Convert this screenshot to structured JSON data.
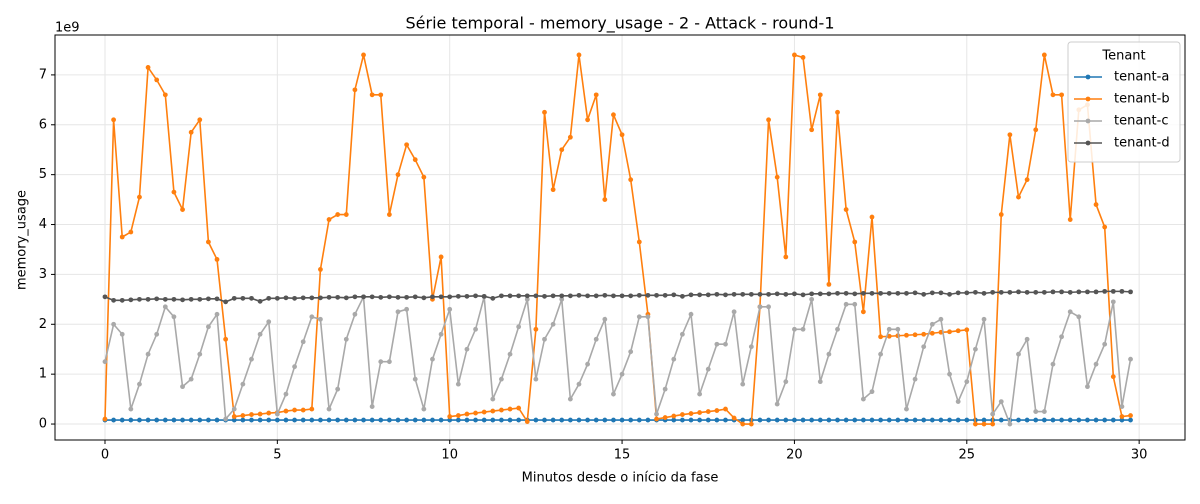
{
  "chart_data": {
    "type": "line",
    "title": "Série temporal - memory_usage - 2 - Attack - round-1",
    "xlabel": "Minutos desde o início da fase",
    "ylabel": "memory_usage",
    "y_offset_label": "1e9",
    "legend_title": "Tenant",
    "legend_loc": "upper right",
    "grid": true,
    "xlim": [
      -1.45,
      31.33
    ],
    "ylim": [
      -0.32,
      7.8
    ],
    "xticks": [
      0,
      5,
      10,
      15,
      20,
      25,
      30
    ],
    "yticks": [
      0,
      1,
      2,
      3,
      4,
      5,
      6,
      7
    ],
    "x": [
      0,
      0.25,
      0.5,
      0.75,
      1,
      1.25,
      1.5,
      1.75,
      2,
      2.25,
      2.5,
      2.75,
      3,
      3.25,
      3.5,
      3.75,
      4,
      4.25,
      4.5,
      4.75,
      5,
      5.25,
      5.5,
      5.75,
      6,
      6.25,
      6.5,
      6.75,
      7,
      7.25,
      7.5,
      7.75,
      8,
      8.25,
      8.5,
      8.75,
      9,
      9.25,
      9.5,
      9.75,
      10,
      10.25,
      10.5,
      10.75,
      11,
      11.25,
      11.5,
      11.75,
      12,
      12.25,
      12.5,
      12.75,
      13,
      13.25,
      13.5,
      13.75,
      14,
      14.25,
      14.5,
      14.75,
      15,
      15.25,
      15.5,
      15.75,
      16,
      16.25,
      16.5,
      16.75,
      17,
      17.25,
      17.5,
      17.75,
      18,
      18.25,
      18.5,
      18.75,
      19,
      19.25,
      19.5,
      19.75,
      20,
      20.25,
      20.5,
      20.75,
      21,
      21.25,
      21.5,
      21.75,
      22,
      22.25,
      22.5,
      22.75,
      23,
      23.25,
      23.5,
      23.75,
      24,
      24.25,
      24.5,
      24.75,
      25,
      25.25,
      25.5,
      25.75,
      26,
      26.25,
      26.5,
      26.75,
      27,
      27.25,
      27.5,
      27.75,
      28,
      28.25,
      28.5,
      28.75,
      29,
      29.25,
      29.5,
      29.75
    ],
    "series": [
      {
        "name": "tenant-a",
        "color": "#1f77b4",
        "values": [
          0.08,
          0.08,
          0.08,
          0.08,
          0.08,
          0.08,
          0.08,
          0.08,
          0.08,
          0.08,
          0.08,
          0.08,
          0.08,
          0.08,
          0.08,
          0.08,
          0.08,
          0.08,
          0.08,
          0.08,
          0.08,
          0.08,
          0.08,
          0.08,
          0.08,
          0.08,
          0.08,
          0.08,
          0.08,
          0.08,
          0.08,
          0.08,
          0.08,
          0.08,
          0.08,
          0.08,
          0.08,
          0.08,
          0.08,
          0.08,
          0.08,
          0.08,
          0.08,
          0.08,
          0.08,
          0.08,
          0.08,
          0.08,
          0.08,
          0.08,
          0.08,
          0.08,
          0.08,
          0.08,
          0.08,
          0.08,
          0.08,
          0.08,
          0.08,
          0.08,
          0.08,
          0.08,
          0.08,
          0.08,
          0.08,
          0.08,
          0.08,
          0.08,
          0.08,
          0.08,
          0.08,
          0.08,
          0.08,
          0.08,
          0.08,
          0.08,
          0.08,
          0.08,
          0.08,
          0.08,
          0.08,
          0.08,
          0.08,
          0.08,
          0.08,
          0.08,
          0.08,
          0.08,
          0.08,
          0.08,
          0.08,
          0.08,
          0.08,
          0.08,
          0.08,
          0.08,
          0.08,
          0.08,
          0.08,
          0.08,
          0.08,
          0.08,
          0.08,
          0.08,
          0.08,
          0.08,
          0.08,
          0.08,
          0.08,
          0.08,
          0.08,
          0.08,
          0.08,
          0.08,
          0.08,
          0.08,
          0.08,
          0.08,
          0.08,
          0.08
        ]
      },
      {
        "name": "tenant-b",
        "color": "#ff7f0e",
        "values": [
          0.1,
          6.1,
          3.75,
          3.85,
          4.55,
          7.15,
          6.9,
          6.6,
          4.65,
          4.3,
          5.85,
          6.1,
          3.65,
          3.3,
          1.7,
          0.15,
          0.17,
          0.19,
          0.2,
          0.22,
          0.23,
          0.26,
          0.28,
          0.28,
          0.3,
          3.1,
          4.1,
          4.2,
          4.2,
          6.7,
          7.4,
          6.6,
          6.6,
          4.2,
          5.0,
          5.6,
          5.3,
          4.95,
          2.5,
          3.35,
          0.15,
          0.17,
          0.2,
          0.22,
          0.24,
          0.26,
          0.28,
          0.3,
          0.32,
          0.05,
          1.9,
          6.25,
          4.7,
          5.5,
          5.75,
          7.4,
          6.1,
          6.6,
          4.5,
          6.2,
          5.8,
          4.9,
          3.65,
          2.2,
          0.1,
          0.13,
          0.16,
          0.19,
          0.21,
          0.23,
          0.25,
          0.27,
          0.3,
          0.12,
          0.0,
          0.0,
          2.35,
          6.1,
          4.95,
          3.35,
          7.4,
          7.35,
          5.9,
          6.6,
          2.8,
          6.25,
          4.3,
          3.65,
          2.25,
          4.15,
          1.75,
          1.76,
          1.77,
          1.78,
          1.79,
          1.8,
          1.82,
          1.84,
          1.85,
          1.87,
          1.89,
          0.0,
          0.0,
          0.0,
          4.2,
          5.8,
          4.55,
          4.9,
          5.9,
          7.4,
          6.6,
          6.6,
          4.1,
          6.3,
          6.4,
          4.4,
          3.95,
          0.95,
          0.15,
          0.17
        ]
      },
      {
        "name": "tenant-c",
        "color": "#a9a9a9",
        "values": [
          1.25,
          2.0,
          1.8,
          0.3,
          0.8,
          1.4,
          1.8,
          2.35,
          2.15,
          0.75,
          0.9,
          1.4,
          1.95,
          2.2,
          0.1,
          0.3,
          0.8,
          1.3,
          1.8,
          2.05,
          0.2,
          0.6,
          1.15,
          1.65,
          2.15,
          2.1,
          0.3,
          0.7,
          1.7,
          2.2,
          2.55,
          0.35,
          1.25,
          1.25,
          2.25,
          2.3,
          0.9,
          0.3,
          1.3,
          1.8,
          2.3,
          0.8,
          1.5,
          1.9,
          2.55,
          0.5,
          0.9,
          1.4,
          1.95,
          2.5,
          0.9,
          1.7,
          2.0,
          2.5,
          0.5,
          0.8,
          1.2,
          1.7,
          2.1,
          0.6,
          1.0,
          1.45,
          2.15,
          2.15,
          0.2,
          0.7,
          1.3,
          1.8,
          2.2,
          0.6,
          1.1,
          1.6,
          1.6,
          2.25,
          0.8,
          1.55,
          2.35,
          2.35,
          0.4,
          0.85,
          1.9,
          1.9,
          2.5,
          0.85,
          1.4,
          1.9,
          2.4,
          2.4,
          0.5,
          0.65,
          1.4,
          1.9,
          1.9,
          0.3,
          0.9,
          1.55,
          2.0,
          2.1,
          1.0,
          0.45,
          0.85,
          1.5,
          2.1,
          0.2,
          0.45,
          0.0,
          1.4,
          1.7,
          0.25,
          0.25,
          1.2,
          1.75,
          2.25,
          2.15,
          0.75,
          1.2,
          1.6,
          2.45,
          0.35,
          1.3
        ]
      },
      {
        "name": "tenant-d",
        "color": "#555555",
        "values": [
          2.55,
          2.48,
          2.48,
          2.49,
          2.5,
          2.5,
          2.51,
          2.5,
          2.5,
          2.49,
          2.5,
          2.5,
          2.51,
          2.51,
          2.45,
          2.52,
          2.52,
          2.52,
          2.46,
          2.52,
          2.52,
          2.53,
          2.52,
          2.53,
          2.53,
          2.53,
          2.54,
          2.54,
          2.53,
          2.55,
          2.55,
          2.55,
          2.54,
          2.55,
          2.54,
          2.54,
          2.55,
          2.53,
          2.55,
          2.55,
          2.55,
          2.56,
          2.56,
          2.57,
          2.56,
          2.52,
          2.57,
          2.57,
          2.57,
          2.57,
          2.57,
          2.56,
          2.57,
          2.57,
          2.57,
          2.58,
          2.57,
          2.57,
          2.58,
          2.57,
          2.57,
          2.57,
          2.58,
          2.58,
          2.58,
          2.58,
          2.59,
          2.56,
          2.59,
          2.59,
          2.59,
          2.6,
          2.59,
          2.6,
          2.6,
          2.6,
          2.6,
          2.6,
          2.61,
          2.6,
          2.61,
          2.59,
          2.61,
          2.61,
          2.61,
          2.62,
          2.62,
          2.61,
          2.62,
          2.62,
          2.62,
          2.62,
          2.62,
          2.62,
          2.63,
          2.6,
          2.63,
          2.63,
          2.6,
          2.63,
          2.63,
          2.64,
          2.62,
          2.64,
          2.64,
          2.64,
          2.65,
          2.64,
          2.64,
          2.64,
          2.65,
          2.65,
          2.64,
          2.65,
          2.65,
          2.65,
          2.66,
          2.66,
          2.66,
          2.65
        ]
      }
    ]
  }
}
